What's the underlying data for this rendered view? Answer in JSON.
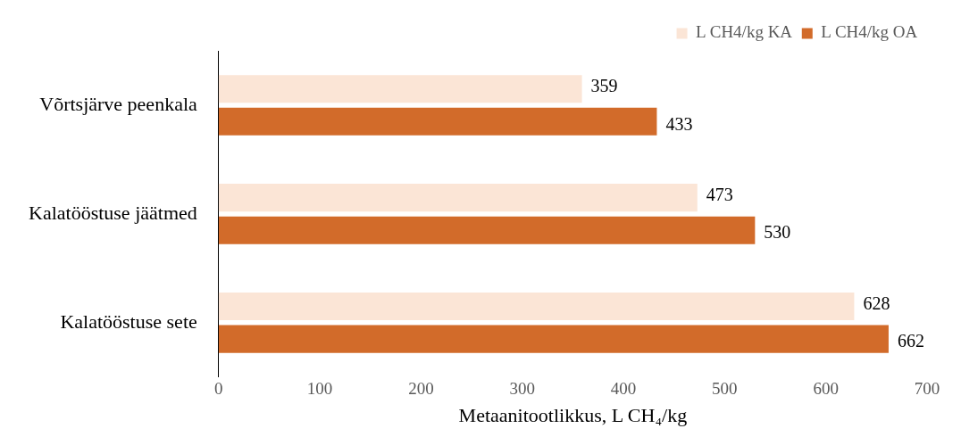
{
  "chart_data": {
    "type": "bar",
    "orientation": "horizontal",
    "categories": [
      "Võrtsjärve peenkala",
      "Kalatööstuse jäätmed",
      "Kalatööstuse sete"
    ],
    "series": [
      {
        "name": "L CH4/kg KA",
        "color": "#fbe5d6",
        "values": [
          359,
          473,
          628
        ]
      },
      {
        "name": "L CH4/kg OA",
        "color": "#d26b2a",
        "values": [
          433,
          530,
          662
        ]
      }
    ],
    "xlabel": "Metaanitootlikkus, L CH₄/kg",
    "xlim": [
      0,
      700
    ],
    "xticks": [
      0,
      100,
      200,
      300,
      400,
      500,
      600,
      700
    ],
    "grid": false,
    "legend": "top right",
    "data_labels": true
  }
}
